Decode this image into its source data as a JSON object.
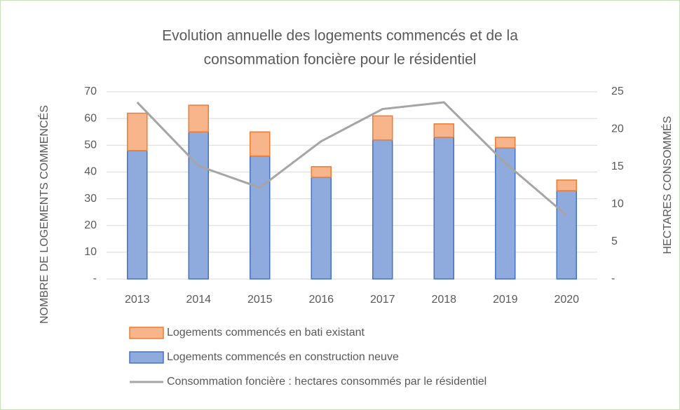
{
  "chart_data": {
    "type": "bar",
    "title": [
      "Evolution annuelle des logements commencés et de la",
      "consommation foncière pour le résidentiel"
    ],
    "y_label": "NOMBRE DE LOGEMENTS COMMENCÉS",
    "y2_label": "HECTARES CONSOMMÉS",
    "categories": [
      "2013",
      "2014",
      "2015",
      "2016",
      "2017",
      "2018",
      "2019",
      "2020"
    ],
    "stacked": true,
    "series": [
      {
        "name": "Logements commencés en construction neuve",
        "type": "bar",
        "color": "#8faadc",
        "edge": "#4472c4",
        "values": [
          48,
          55,
          46,
          38,
          52,
          53,
          49,
          33
        ]
      },
      {
        "name": "Logements commencés en bati existant",
        "type": "bar",
        "color": "#f8b58c",
        "edge": "#ed7d31",
        "values": [
          14,
          10,
          9,
          4,
          9,
          5,
          4,
          4
        ]
      },
      {
        "name": "Consommation foncière : hectares consommés par le résidentiel",
        "type": "line",
        "axis": "y2",
        "color": "#a5a5a5",
        "values": [
          23.6,
          15.1,
          12.2,
          18.4,
          22.7,
          23.6,
          15.5,
          8.5
        ]
      }
    ],
    "legend_order": [
      1,
      0,
      2
    ],
    "ylim": [
      0,
      70
    ],
    "yticks": [
      {
        "value": 0,
        "label": "-"
      },
      10,
      20,
      30,
      40,
      50,
      60,
      70
    ],
    "y2lim": [
      0,
      25
    ],
    "y2ticks": [
      {
        "value": 0,
        "label": "-"
      },
      5,
      10,
      15,
      20,
      25
    ],
    "grid": true
  }
}
